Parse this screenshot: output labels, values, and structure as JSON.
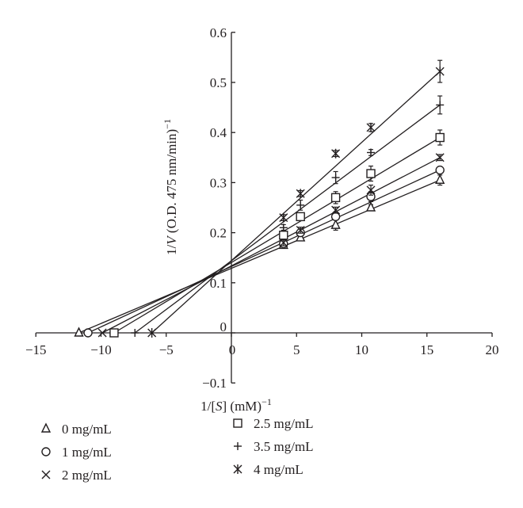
{
  "chart_data": {
    "type": "scatter",
    "xlabel": "1/[S] (mM)",
    "xlabel_sup": "−1",
    "ylabel": "1/V (O.D. 475 nm/min)",
    "ylabel_sup": "−1",
    "xlim": [
      -15,
      20
    ],
    "ylim": [
      -0.1,
      0.6
    ],
    "x_ticks": [
      -15,
      -10,
      -5,
      0,
      5,
      10,
      15,
      20
    ],
    "x_tick_labels": [
      "−15",
      "−10",
      "−5",
      "0",
      "5",
      "10",
      "15",
      "20"
    ],
    "y_ticks": [
      -0.1,
      0,
      0.1,
      0.2,
      0.3,
      0.4,
      0.5,
      0.6
    ],
    "y_tick_labels": [
      "−0.1",
      "0",
      "0.1",
      "0.2",
      "0.3",
      "0.4",
      "0.5",
      "0.6"
    ],
    "grid": false,
    "legend_position": "bottom",
    "series": [
      {
        "name": "0 mg/mL",
        "marker": "triangle",
        "x": [
          4,
          5.3,
          8,
          10.7,
          16
        ],
        "y": [
          0.175,
          0.19,
          0.215,
          0.25,
          0.305
        ],
        "err": [
          0.006,
          0.006,
          0.01,
          0.006,
          0.01
        ],
        "x_intercept": -11.7,
        "fit_x": [
          -11.7,
          16
        ]
      },
      {
        "name": "1 mg/mL",
        "marker": "circle",
        "x": [
          4,
          5.3,
          8,
          10.7,
          16
        ],
        "y": [
          0.178,
          0.2,
          0.232,
          0.272,
          0.325
        ],
        "err": [
          0.006,
          0.006,
          0.006,
          0.01,
          0.006
        ],
        "x_intercept": -11.0,
        "fit_x": [
          -11.0,
          16
        ]
      },
      {
        "name": "2 mg/mL",
        "marker": "x",
        "x": [
          4,
          5.3,
          8,
          10.7,
          16
        ],
        "y": [
          0.18,
          0.205,
          0.245,
          0.285,
          0.35
        ],
        "err": [
          0.006,
          0.006,
          0.006,
          0.01,
          0.006
        ],
        "x_intercept": -9.9,
        "fit_x": [
          -9.9,
          16
        ]
      },
      {
        "name": "2.5 mg/mL",
        "marker": "square",
        "x": [
          4,
          5.3,
          8,
          10.7,
          16
        ],
        "y": [
          0.195,
          0.232,
          0.27,
          0.318,
          0.39
        ],
        "err": [
          0.01,
          0.006,
          0.012,
          0.015,
          0.015
        ],
        "x_intercept": -9.0,
        "fit_x": [
          -9.0,
          16
        ]
      },
      {
        "name": "3.5 mg/mL",
        "marker": "plus",
        "x": [
          4,
          5.3,
          8,
          10.7,
          16
        ],
        "y": [
          0.21,
          0.255,
          0.31,
          0.36,
          0.455
        ],
        "err": [
          0.006,
          0.01,
          0.012,
          0.006,
          0.018
        ],
        "x_intercept": -7.4,
        "fit_x": [
          -7.4,
          16
        ]
      },
      {
        "name": "4 mg/mL",
        "marker": "asterisk",
        "x": [
          4,
          5.3,
          8,
          10.7,
          16
        ],
        "y": [
          0.23,
          0.278,
          0.358,
          0.41,
          0.522
        ],
        "err": [
          0.006,
          0.006,
          0.006,
          0.008,
          0.022
        ],
        "x_intercept": -6.1,
        "fit_x": [
          -6.1,
          16
        ]
      }
    ]
  }
}
